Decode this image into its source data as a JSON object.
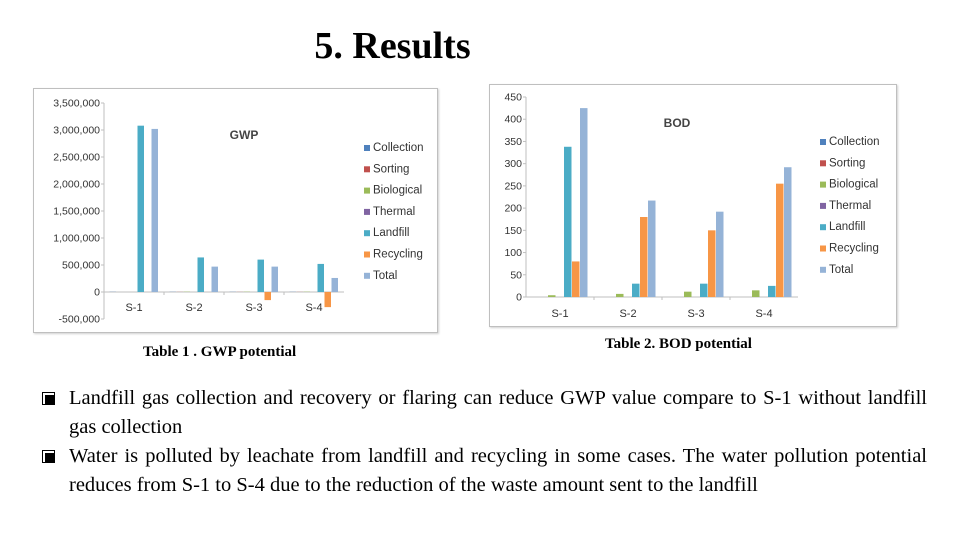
{
  "slide": {
    "title": "5. Results",
    "captions": {
      "gwp": "Table 1 . GWP potential",
      "bod": "Table 2. BOD potential"
    },
    "bullets": [
      "Landfill gas collection and recovery or flaring can reduce GWP value compare to S-1 without landfill gas collection",
      "Water is polluted by leachate from landfill and recycling in some cases. The water pollution potential reduces from S-1 to S-4 due to the reduction of the waste amount sent to the landfill"
    ]
  },
  "chart_data": [
    {
      "type": "bar",
      "title": "GWP",
      "categories": [
        "S-1",
        "S-2",
        "S-3",
        "S-4"
      ],
      "ylim": [
        -500000,
        3500000
      ],
      "yticks": [
        -500000,
        0,
        500000,
        1000000,
        1500000,
        2000000,
        2500000,
        3000000,
        3500000
      ],
      "ytick_labels": [
        "-500,000",
        "0",
        "500,000",
        "1,000,000",
        "1,500,000",
        "2,000,000",
        "2,500,000",
        "3,000,000",
        "3,500,000"
      ],
      "legend_position": "right",
      "series": [
        {
          "name": "Collection",
          "color": "#4f81bd",
          "values": [
            3000,
            3000,
            3000,
            3000
          ]
        },
        {
          "name": "Sorting",
          "color": "#c0504d",
          "values": [
            0,
            2000,
            2000,
            2000
          ]
        },
        {
          "name": "Biological",
          "color": "#9bbb59",
          "values": [
            0,
            5000,
            5000,
            5000
          ]
        },
        {
          "name": "Thermal",
          "color": "#8064a2",
          "values": [
            0,
            0,
            0,
            0
          ]
        },
        {
          "name": "Landfill",
          "color": "#4bacc6",
          "values": [
            3080000,
            640000,
            600000,
            520000
          ]
        },
        {
          "name": "Recycling",
          "color": "#f79646",
          "values": [
            0,
            0,
            -150000,
            -280000
          ]
        },
        {
          "name": "Total",
          "color": "#95b3d7",
          "values": [
            3020000,
            470000,
            470000,
            260000
          ]
        }
      ]
    },
    {
      "type": "bar",
      "title": "BOD",
      "categories": [
        "S-1",
        "S-2",
        "S-3",
        "S-4"
      ],
      "ylim": [
        0,
        450
      ],
      "yticks": [
        0,
        50,
        100,
        150,
        200,
        250,
        300,
        350,
        400,
        450
      ],
      "ytick_labels": [
        "0",
        "50",
        "100",
        "150",
        "200",
        "250",
        "300",
        "350",
        "400",
        "450"
      ],
      "legend_position": "right",
      "series": [
        {
          "name": "Collection",
          "color": "#4f81bd",
          "values": [
            0,
            0,
            0,
            0
          ]
        },
        {
          "name": "Sorting",
          "color": "#c0504d",
          "values": [
            0,
            0,
            0,
            0
          ]
        },
        {
          "name": "Biological",
          "color": "#9bbb59",
          "values": [
            4,
            7,
            12,
            15
          ]
        },
        {
          "name": "Thermal",
          "color": "#8064a2",
          "values": [
            0,
            0,
            0,
            0
          ]
        },
        {
          "name": "Landfill",
          "color": "#4bacc6",
          "values": [
            338,
            30,
            30,
            25
          ]
        },
        {
          "name": "Recycling",
          "color": "#f79646",
          "values": [
            80,
            180,
            150,
            255
          ]
        },
        {
          "name": "Total",
          "color": "#95b3d7",
          "values": [
            425,
            217,
            192,
            292
          ]
        }
      ]
    }
  ]
}
